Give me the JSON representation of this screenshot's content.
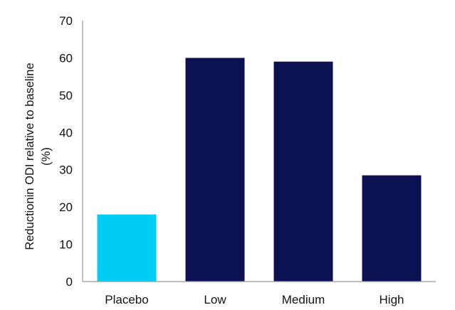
{
  "chart_data": {
    "type": "bar",
    "title": "",
    "xlabel": "",
    "ylabel": [
      "Reductionin ODI relative to baseline",
      "(%)"
    ],
    "categories": [
      "Placebo",
      "Low",
      "Medium",
      "High"
    ],
    "values": [
      18,
      60,
      59,
      28.5
    ],
    "ylim": [
      0,
      70
    ],
    "yticks": [
      0,
      10,
      20,
      30,
      40,
      50,
      60,
      70
    ],
    "grid": false,
    "legend": "none",
    "colors": [
      "#00CCF5",
      "#0C1152",
      "#0C1152",
      "#0C1152"
    ],
    "axis_color": "#9A9A9A"
  }
}
